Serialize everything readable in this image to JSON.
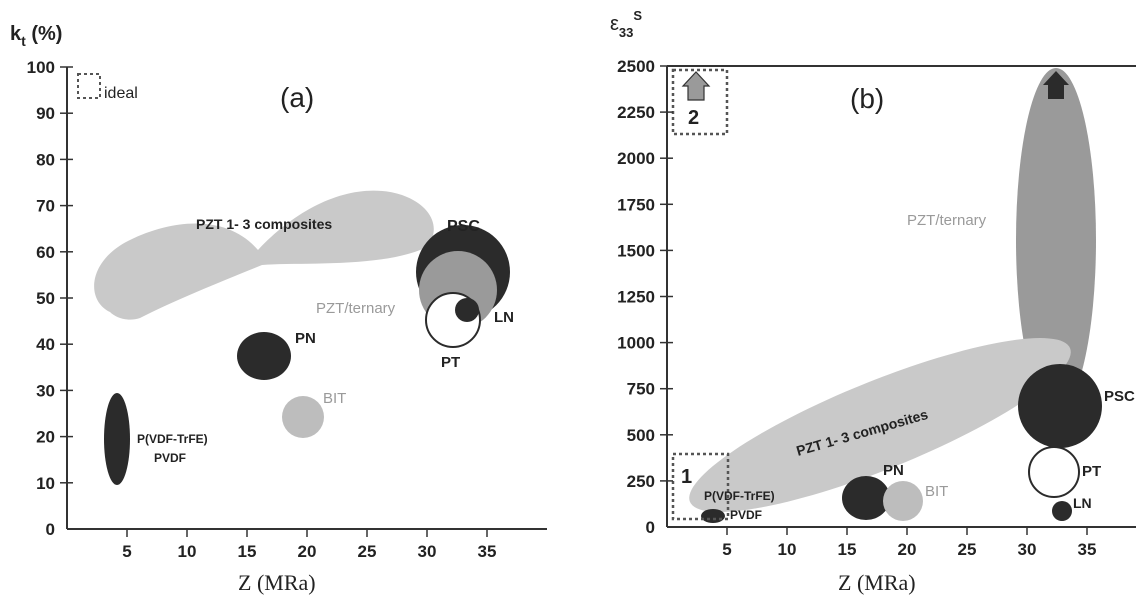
{
  "chart_data": [
    {
      "type": "bubble-map",
      "panel": "(a)",
      "ylabel_main": "k",
      "ylabel_sub": "t",
      "ylabel_tail": " (%)",
      "xlabel": "Z (MRa)",
      "x_ticks": [
        5,
        10,
        15,
        20,
        25,
        30,
        35
      ],
      "y_ticks": [
        0,
        10,
        20,
        30,
        40,
        50,
        60,
        70,
        80,
        90,
        100
      ],
      "xlim": [
        0,
        40
      ],
      "ylim": [
        0,
        100
      ],
      "ideal_label": "ideal",
      "regions": [
        {
          "label": "PZT 1- 3 composites",
          "x_range": [
            3,
            31
          ],
          "y_range": [
            46,
            72
          ]
        },
        {
          "label": "PSC",
          "x": 33,
          "y": 56
        },
        {
          "label": "PZT/ternary",
          "x": 32.5,
          "y": 52
        },
        {
          "label": "LN",
          "x": 33.5,
          "y": 48
        },
        {
          "label": "PT",
          "x": 32.5,
          "y": 45
        },
        {
          "label": "PN",
          "x": 17,
          "y": 37
        },
        {
          "label": "BIT",
          "x": 20,
          "y": 25
        },
        {
          "label": "P(VDF-TrFE)",
          "x": 4,
          "y": 20
        },
        {
          "label": "PVDF",
          "x": 4,
          "y": 20
        }
      ]
    },
    {
      "type": "bubble-map",
      "panel": "(b)",
      "ylabel_main": "ε",
      "ylabel_sub": "33",
      "ylabel_sup": "S",
      "xlabel": "Z (MRa)",
      "x_ticks": [
        5,
        10,
        15,
        20,
        25,
        30,
        35
      ],
      "y_ticks": [
        0,
        250,
        500,
        750,
        1000,
        1250,
        1500,
        1750,
        2000,
        2250,
        2500
      ],
      "xlim": [
        0,
        40
      ],
      "ylim": [
        0,
        2500
      ],
      "box_labels": [
        "1",
        "2"
      ],
      "regions": [
        {
          "label": "PZT/ternary",
          "x": 33,
          "y_range": [
            500,
            2500
          ]
        },
        {
          "label": "PZT 1- 3 composites",
          "x_range": [
            2,
            32
          ],
          "y_range": [
            200,
            1000
          ]
        },
        {
          "label": "PSC",
          "x": 33,
          "y": 650
        },
        {
          "label": "PT",
          "x": 33,
          "y": 280
        },
        {
          "label": "LN",
          "x": 33,
          "y": 50
        },
        {
          "label": "PN",
          "x": 17,
          "y": 130
        },
        {
          "label": "BIT",
          "x": 20,
          "y": 110
        },
        {
          "label": "P(VDF-TrFE)",
          "x": 4,
          "y": 10
        },
        {
          "label": "PVDF",
          "x": 4,
          "y": 10
        }
      ]
    }
  ],
  "colors": {
    "dark": "#2b2b2b",
    "mid": "#9a9a9a",
    "light": "#c8c8c8",
    "axis": "#333333"
  }
}
